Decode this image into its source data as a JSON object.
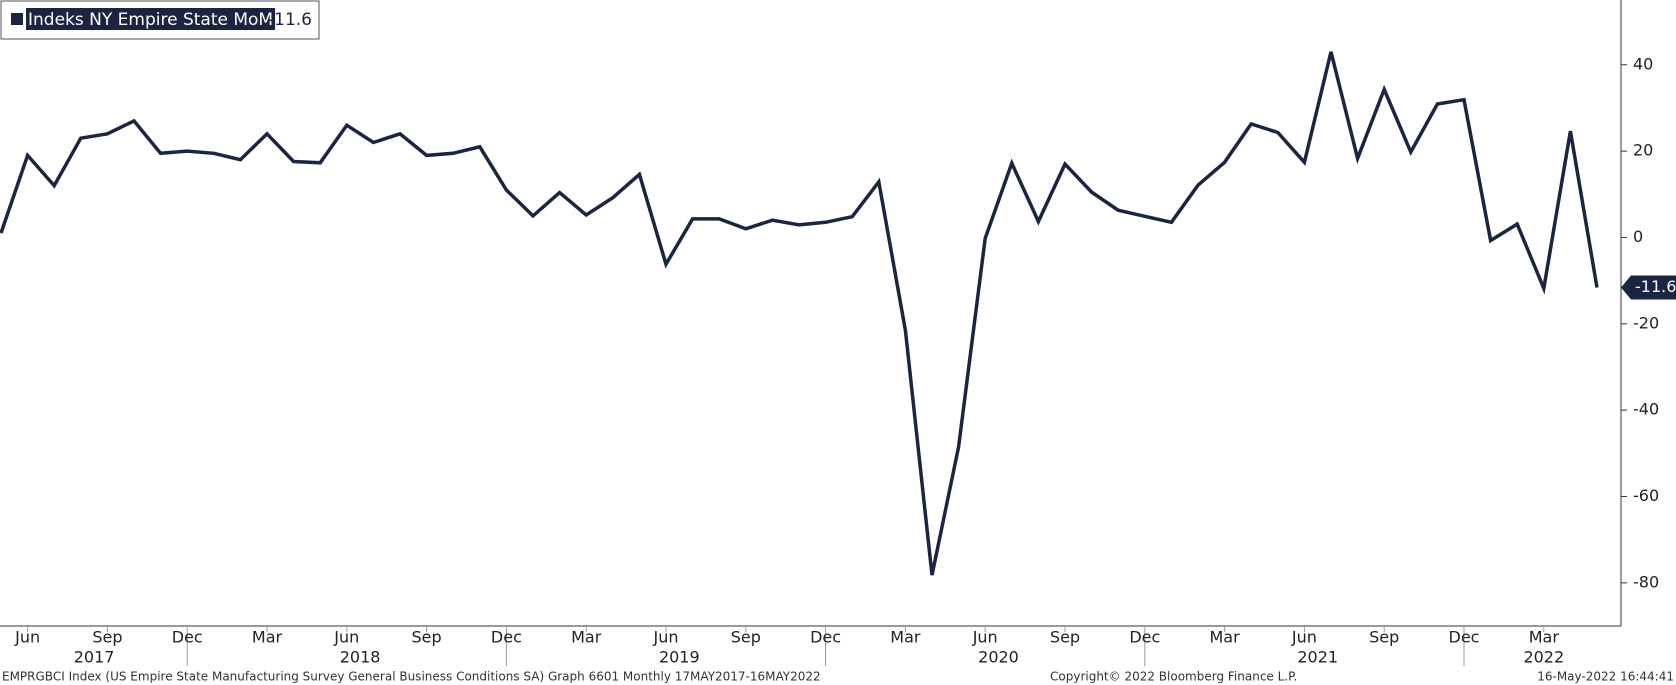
{
  "chart_data": {
    "type": "line",
    "series": [
      {
        "name": "Indeks NY Empire State MoM",
        "color": "#1b2542",
        "values": [
          1,
          19,
          12,
          23,
          24,
          27,
          19.5,
          20,
          19.5,
          18,
          24,
          17.6,
          17.3,
          26,
          22,
          24,
          19,
          19.5,
          21,
          11,
          5,
          10.4,
          5.2,
          9.2,
          14.6,
          -6.2,
          4.3,
          4.3,
          2,
          4,
          2.9,
          3.5,
          4.8,
          12.9,
          -21.5,
          -78.2,
          -48.5,
          -0.2,
          17.2,
          3.7,
          17,
          10.5,
          6.3,
          4.9,
          3.5,
          12.1,
          17.4,
          26.3,
          24.3,
          17.4,
          43,
          18.3,
          34.3,
          19.8,
          30.9,
          31.9,
          -0.7,
          3.1,
          -11.8,
          24.6,
          -11.6
        ]
      }
    ],
    "x_start": "2017-05",
    "ylim": [
      -90,
      55
    ],
    "yticks": [
      -80,
      -60,
      -40,
      -20,
      0,
      20,
      40
    ],
    "xticks": [
      {
        "value": 1,
        "label": "Jun"
      },
      {
        "value": 4,
        "label": "Sep"
      },
      {
        "value": 7,
        "label": "Dec"
      },
      {
        "value": 10,
        "label": "Mar"
      },
      {
        "value": 13,
        "label": "Jun"
      },
      {
        "value": 16,
        "label": "Sep"
      },
      {
        "value": 19,
        "label": "Dec"
      },
      {
        "value": 22,
        "label": "Mar"
      },
      {
        "value": 25,
        "label": "Jun"
      },
      {
        "value": 28,
        "label": "Sep"
      },
      {
        "value": 31,
        "label": "Dec"
      },
      {
        "value": 34,
        "label": "Mar"
      },
      {
        "value": 37,
        "label": "Jun"
      },
      {
        "value": 40,
        "label": "Sep"
      },
      {
        "value": 43,
        "label": "Dec"
      },
      {
        "value": 46,
        "label": "Mar"
      },
      {
        "value": 49,
        "label": "Jun"
      },
      {
        "value": 52,
        "label": "Sep"
      },
      {
        "value": 55,
        "label": "Dec"
      },
      {
        "value": 58,
        "label": "Mar"
      }
    ],
    "year_labels": [
      {
        "value": 3.5,
        "label": "2017"
      },
      {
        "value": 13.5,
        "label": "2018"
      },
      {
        "value": 25.5,
        "label": "2019"
      },
      {
        "value": 37.5,
        "label": "2020"
      },
      {
        "value": 49.5,
        "label": "2021"
      },
      {
        "value": 58,
        "label": "2022"
      }
    ],
    "footer_left": "EMPRGBCI Index (US Empire State Manufacturing Survey General Business Conditions SA) Graph 6601  Monthly 17MAY2017-16MAY2022",
    "footer_center": "Copyright© 2022 Bloomberg Finance L.P.",
    "footer_right": "16-May-2022 16:44:41"
  }
}
